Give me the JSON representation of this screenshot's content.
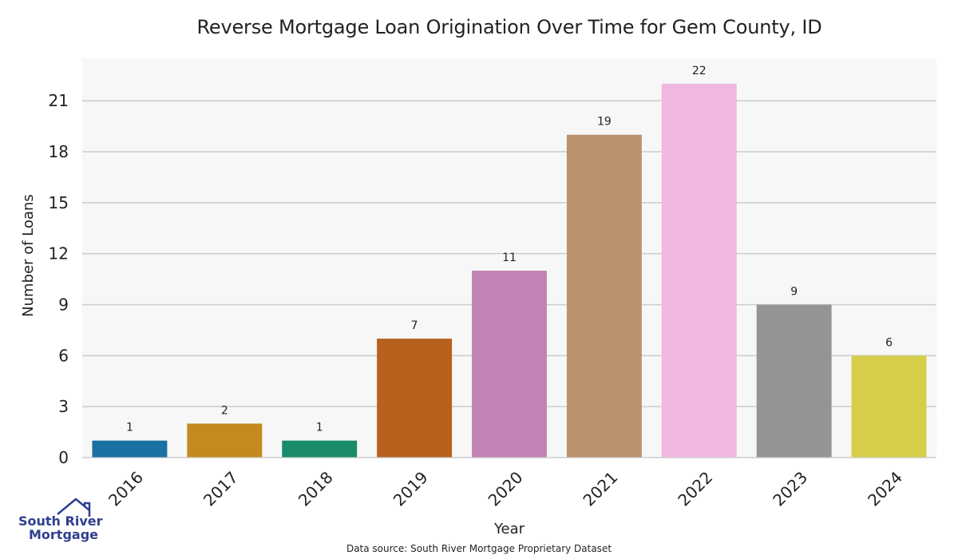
{
  "chart_data": {
    "type": "bar",
    "title": "Reverse Mortgage Loan Origination Over Time for Gem County, ID",
    "xlabel": "Year",
    "ylabel": "Number of Loans",
    "categories": [
      "2016",
      "2017",
      "2018",
      "2019",
      "2020",
      "2021",
      "2022",
      "2023",
      "2024"
    ],
    "values": [
      1,
      2,
      1,
      7,
      11,
      19,
      22,
      9,
      6
    ],
    "colors": [
      "#1a6fa3",
      "#c4891f",
      "#1a8c6b",
      "#b8601e",
      "#c283b5",
      "#bb916e",
      "#f0b8e0",
      "#949494",
      "#d6cd4a"
    ],
    "ylim": [
      0,
      23.5
    ],
    "yticks": [
      0,
      3,
      6,
      9,
      12,
      15,
      18,
      21
    ],
    "grid": true,
    "background": "#f7f7f7",
    "gridline_color": "#cccccc"
  },
  "footer": {
    "source": "Data source: South River Mortgage Proprietary Dataset"
  },
  "logo": {
    "line1": "South River",
    "line2": "Mortgage",
    "color": "#2f3f8f"
  }
}
